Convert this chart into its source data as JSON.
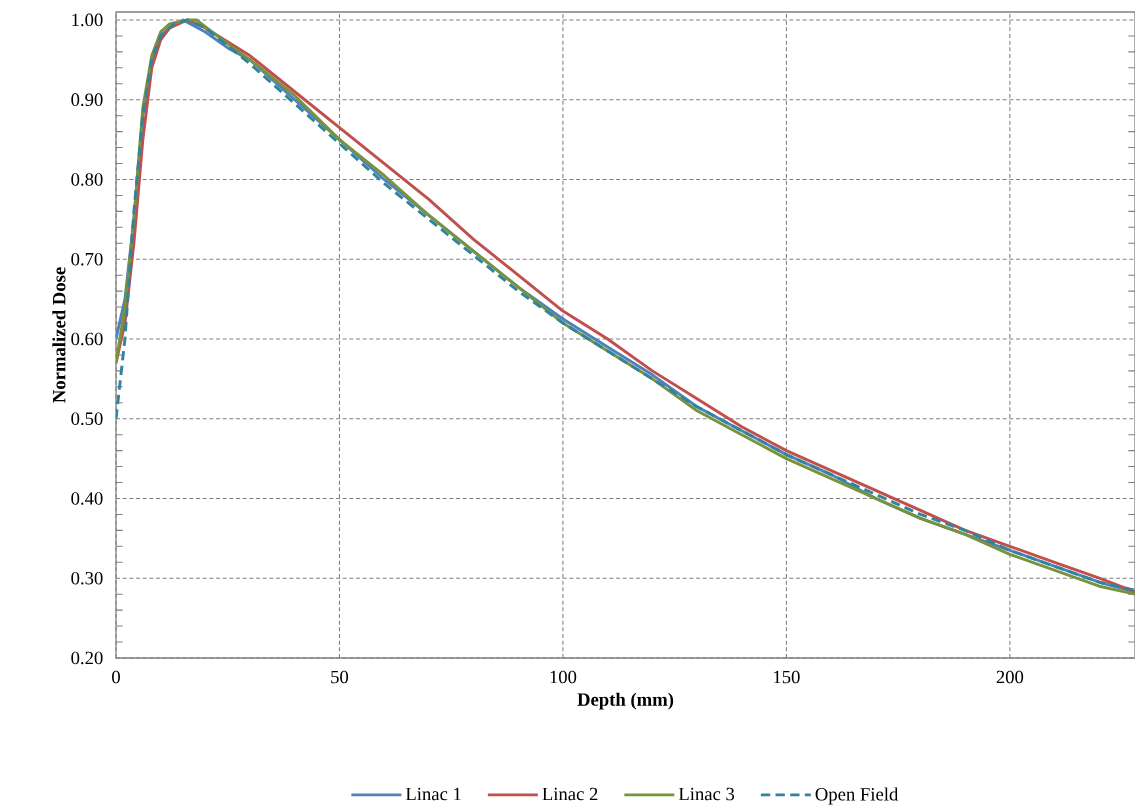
{
  "chart_data": {
    "type": "line",
    "xlabel": "Depth (mm)",
    "ylabel": "Normalized Dose",
    "xlim": [
      0,
      228
    ],
    "ylim": [
      0.2,
      1.01
    ],
    "xticks": [
      0,
      50,
      100,
      150,
      200
    ],
    "yticks": [
      {
        "value": 0.2,
        "label": "0.20"
      },
      {
        "value": 0.3,
        "label": "0.30"
      },
      {
        "value": 0.4,
        "label": "0.40"
      },
      {
        "value": 0.5,
        "label": "0.50"
      },
      {
        "value": 0.6,
        "label": "0.60"
      },
      {
        "value": 0.7,
        "label": "0.70"
      },
      {
        "value": 0.8,
        "label": "0.80"
      },
      {
        "value": 0.9,
        "label": "0.90"
      },
      {
        "value": 1.0,
        "label": "1.00"
      }
    ],
    "grid": true,
    "legend": "bottom",
    "marker": "none",
    "series": [
      {
        "name": "Linac 1",
        "color": "#4f81bd",
        "line_style": "solid",
        "x": [
          0,
          2,
          4,
          6,
          8,
          10,
          12,
          15,
          20,
          25,
          30,
          40,
          50,
          60,
          70,
          80,
          90,
          100,
          110,
          120,
          130,
          140,
          150,
          160,
          170,
          180,
          190,
          200,
          210,
          220,
          228
        ],
        "values": [
          0.6,
          0.65,
          0.75,
          0.88,
          0.95,
          0.98,
          0.99,
          1.0,
          0.985,
          0.965,
          0.95,
          0.9,
          0.85,
          0.8,
          0.755,
          0.71,
          0.665,
          0.625,
          0.59,
          0.555,
          0.515,
          0.485,
          0.455,
          0.43,
          0.4,
          0.375,
          0.355,
          0.335,
          0.315,
          0.295,
          0.283
        ]
      },
      {
        "name": "Linac 2",
        "color": "#c0504d",
        "line_style": "solid",
        "x": [
          0,
          2,
          4,
          6,
          8,
          10,
          12,
          16,
          20,
          30,
          40,
          50,
          60,
          70,
          80,
          90,
          100,
          110,
          120,
          130,
          140,
          150,
          160,
          170,
          180,
          190,
          200,
          210,
          220,
          228
        ],
        "values": [
          0.57,
          0.62,
          0.72,
          0.85,
          0.94,
          0.975,
          0.99,
          1.0,
          0.99,
          0.955,
          0.91,
          0.865,
          0.82,
          0.775,
          0.725,
          0.68,
          0.635,
          0.6,
          0.56,
          0.525,
          0.49,
          0.46,
          0.435,
          0.41,
          0.385,
          0.36,
          0.34,
          0.32,
          0.3,
          0.283
        ]
      },
      {
        "name": "Linac 3",
        "color": "#77933c",
        "line_style": "solid",
        "x": [
          0,
          2,
          4,
          6,
          8,
          10,
          12,
          16,
          18,
          25,
          30,
          40,
          50,
          60,
          70,
          80,
          90,
          100,
          110,
          120,
          130,
          140,
          150,
          160,
          170,
          180,
          190,
          200,
          210,
          220,
          228
        ],
        "values": [
          0.57,
          0.64,
          0.75,
          0.89,
          0.955,
          0.985,
          0.995,
          1.0,
          1.0,
          0.97,
          0.95,
          0.905,
          0.85,
          0.805,
          0.755,
          0.71,
          0.665,
          0.62,
          0.585,
          0.55,
          0.51,
          0.48,
          0.45,
          0.425,
          0.4,
          0.375,
          0.355,
          0.33,
          0.31,
          0.29,
          0.28
        ]
      },
      {
        "name": "Open Field",
        "color": "#31849b",
        "line_style": "dashed",
        "x": [
          0,
          1,
          2,
          3,
          4,
          6,
          8,
          10,
          13,
          16,
          20,
          30,
          40,
          50,
          60,
          70,
          80,
          90,
          100,
          110,
          120,
          130,
          140,
          150,
          160,
          170,
          180,
          190,
          200,
          210,
          220,
          228
        ],
        "values": [
          0.5,
          0.55,
          0.6,
          0.68,
          0.76,
          0.88,
          0.95,
          0.98,
          0.995,
          1.0,
          0.99,
          0.945,
          0.895,
          0.845,
          0.795,
          0.75,
          0.705,
          0.66,
          0.62,
          0.585,
          0.55,
          0.515,
          0.485,
          0.455,
          0.43,
          0.405,
          0.38,
          0.36,
          0.335,
          0.315,
          0.295,
          0.285
        ]
      }
    ]
  }
}
